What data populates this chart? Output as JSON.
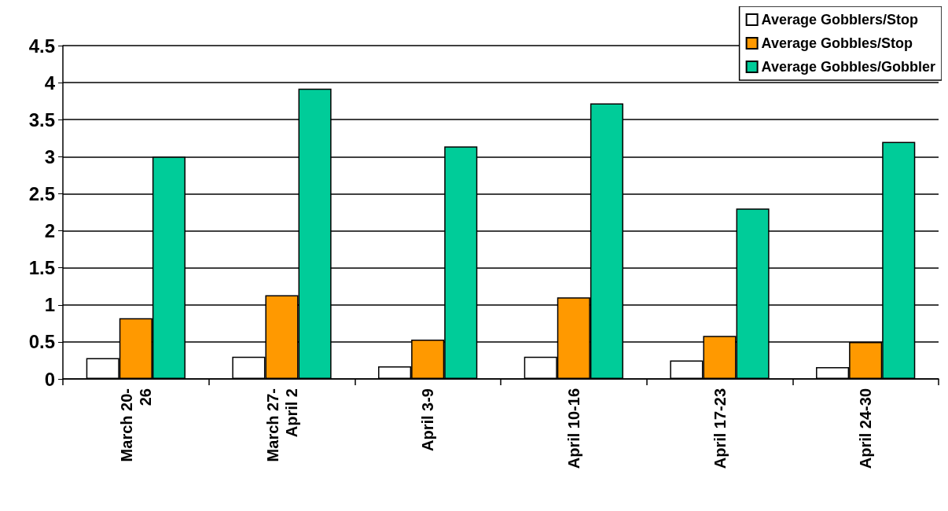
{
  "chart_data": {
    "type": "bar",
    "categories": [
      "March 20-\n26",
      "March 27-\nApril 2",
      "April 3-9",
      "April 10-16",
      "April 17-23",
      "April 24-30"
    ],
    "series": [
      {
        "name": "Average Gobblers/Stop",
        "color": "#ffffff",
        "values": [
          0.28,
          0.3,
          0.17,
          0.3,
          0.25,
          0.16
        ]
      },
      {
        "name": "Average Gobbles/Stop",
        "color": "#ff9900",
        "values": [
          0.82,
          1.13,
          0.53,
          1.1,
          0.58,
          0.5
        ]
      },
      {
        "name": "Average Gobbles/Gobbler",
        "color": "#00cc99",
        "values": [
          3.0,
          3.92,
          3.14,
          3.72,
          2.3,
          3.2
        ]
      }
    ],
    "ylim": [
      0,
      4.5
    ],
    "yticks": [
      0,
      0.5,
      1,
      1.5,
      2,
      2.5,
      3,
      3.5,
      4,
      4.5
    ],
    "grid": "y",
    "legend": "top right"
  }
}
